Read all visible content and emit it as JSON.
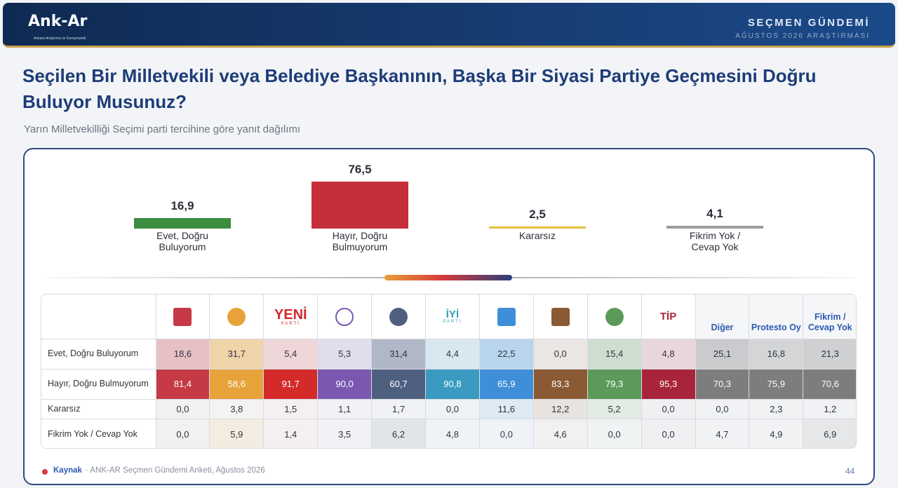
{
  "header": {
    "logo_text": "Ank-Ar",
    "logo_tagline": "Ankara Araştırma ve Danışmanlık",
    "title": "SEÇMEN GÜNDEMİ",
    "subtitle": "AĞUSTOS 2026 ARAŞTIRMASI"
  },
  "title": "Seçilen Bir Milletvekili veya Belediye Başkanının, Başka Bir Siyasi Partiye Geçmesini Doğru Buluyor Musunuz?",
  "subtitle": "Yarın Milletvekilliği Seçimi parti tercihine göre yanıt dağılımı",
  "chart_data": [
    {
      "type": "bar",
      "categories": [
        "Evet, Doğru Buluyorum",
        "Hayır, Doğru Bulmuyorum",
        "Kararsız",
        "Fikrim Yok / Cevap Yok"
      ],
      "values": [
        16.9,
        76.5,
        2.5,
        4.1
      ],
      "value_labels": [
        "16,9",
        "76,5",
        "2,5",
        "4,1"
      ],
      "colors": [
        "#3b8c3f",
        "#c52f3a",
        "#e3c040",
        "#9c9c9c"
      ]
    },
    {
      "type": "table",
      "columns": [
        {
          "label": "",
          "logo": "chp-logo"
        },
        {
          "label": "",
          "logo": "ak-parti-logo"
        },
        {
          "label": "",
          "logo": "yeni-parti-logo",
          "logo_text": "YENİ",
          "logo_subtext": "PARTİ"
        },
        {
          "label": "",
          "logo": "dem-parti-logo"
        },
        {
          "label": "",
          "logo": "mhp-logo"
        },
        {
          "label": "",
          "logo": "iyi-parti-logo",
          "logo_text": "İYİ",
          "logo_subtext": "PARTİ"
        },
        {
          "label": "",
          "logo": "anahtar-parti-logo"
        },
        {
          "label": "",
          "logo": "yeniden-refah-logo"
        },
        {
          "label": "",
          "logo": "zafer-partisi-logo"
        },
        {
          "label": "",
          "logo": "tip-logo",
          "logo_text": "TİP"
        },
        {
          "label": "Diğer"
        },
        {
          "label": "Protesto Oy"
        },
        {
          "label": "Fikrim / Cevap Yok"
        }
      ],
      "rows": [
        {
          "label": "Evet, Doğru Buluyorum",
          "values": [
            "18,6",
            "31,7",
            "5,4",
            "5,3",
            "31,4",
            "4,4",
            "22,5",
            "0,0",
            "15,4",
            "4,8",
            "25,1",
            "16,8",
            "21,3"
          ]
        },
        {
          "label": "Hayır, Doğru Bulmuyorum",
          "values": [
            "81,4",
            "58,6",
            "91,7",
            "90,0",
            "60,7",
            "90,8",
            "65,9",
            "83,3",
            "79,3",
            "95,3",
            "70,3",
            "75,9",
            "70,6"
          ]
        },
        {
          "label": "Kararsız",
          "values": [
            "0,0",
            "3,8",
            "1,5",
            "1,1",
            "1,7",
            "0,0",
            "11,6",
            "12,2",
            "5,2",
            "0,0",
            "0,0",
            "2,3",
            "1,2"
          ]
        },
        {
          "label": "Fikrim Yok / Cevap Yok",
          "values": [
            "0,0",
            "5,9",
            "1,4",
            "3,5",
            "6,2",
            "4,8",
            "0,0",
            "4,6",
            "0,0",
            "0,0",
            "4,7",
            "4,9",
            "6,9"
          ]
        }
      ],
      "column_colors": [
        "#c53a44",
        "#e8a23a",
        "#d42a2a",
        "#7b57b0",
        "#4f5f80",
        "#3a9ac2",
        "#3e8fd8",
        "#8a5a34",
        "#5c9a5a",
        "#a8243a",
        "#7d7d7d",
        "#7d7d7d",
        "#7d7d7d"
      ]
    }
  ],
  "footer": {
    "source_label": "Kaynak",
    "source_text": "· ANK-AR Seçmen Gündemi Anketi, Ağustos 2026",
    "page_number": "44"
  }
}
